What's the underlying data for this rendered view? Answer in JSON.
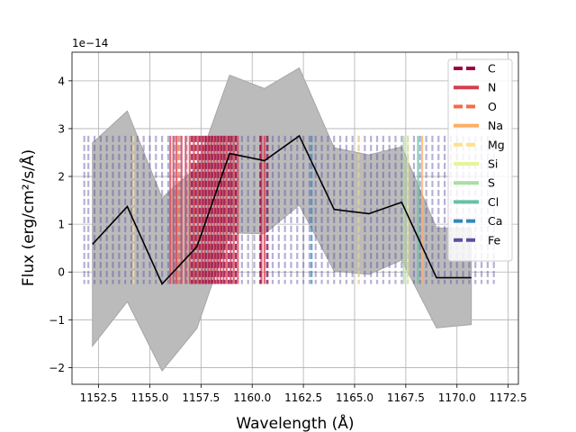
{
  "chart_data": {
    "type": "line",
    "xlabel": "Wavelength ($\\AA$)",
    "ylabel": "Flux (erg/cm$^2$/s/$\\AA$)",
    "xlabel_text": "Wavelength (Å)",
    "ylabel_text": "Flux (erg/cm²/s/Å)",
    "y_offset_text": "1e−14",
    "y_scale": 1e-14,
    "xlim": [
      1151.2,
      1173.0
    ],
    "ylim": [
      -2.35,
      4.6
    ],
    "xticks": [
      1152.5,
      1155.0,
      1157.5,
      1160.0,
      1162.5,
      1165.0,
      1167.5,
      1170.0,
      1172.5
    ],
    "xtick_labels": [
      "1152.5",
      "1155.0",
      "1157.5",
      "1160.0",
      "1162.5",
      "1165.0",
      "1167.5",
      "1170.0",
      "1172.5"
    ],
    "yticks": [
      -2,
      -1,
      0,
      1,
      2,
      3,
      4
    ],
    "ytick_labels": [
      "−2",
      "−1",
      "0",
      "1",
      "2",
      "3",
      "4"
    ],
    "grid": true,
    "legend_position": "upper right",
    "series": [
      {
        "type": "line",
        "color": "#000000",
        "x": [
          1152.2,
          1153.9,
          1155.6,
          1157.3,
          1158.9,
          1160.6,
          1162.3,
          1164.0,
          1165.7,
          1167.3,
          1169.0,
          1170.7
        ],
        "y": [
          0.58,
          1.37,
          -0.25,
          0.53,
          2.48,
          2.33,
          2.85,
          1.31,
          1.22,
          1.46,
          -0.12,
          -0.12
        ]
      }
    ],
    "band": {
      "color": "#bbbbbb",
      "x": [
        1152.2,
        1153.9,
        1155.6,
        1157.3,
        1158.9,
        1160.6,
        1162.3,
        1164.0,
        1165.7,
        1167.3,
        1169.0,
        1170.7
      ],
      "upper": [
        2.7,
        3.37,
        1.55,
        2.2,
        4.12,
        3.84,
        4.27,
        2.6,
        2.45,
        2.62,
        0.92,
        0.92
      ],
      "lower": [
        -1.55,
        -0.62,
        -2.07,
        -1.18,
        0.82,
        0.8,
        1.4,
        0.02,
        -0.05,
        0.25,
        -1.17,
        -1.1
      ]
    },
    "line_markers": {
      "ymin": -0.25,
      "ymax": 2.85,
      "elements": [
        {
          "name": "C",
          "color": "#9e0142",
          "dash": "dashed",
          "positions": [
            1157.05,
            1157.25,
            1157.45,
            1157.6,
            1157.75,
            1157.9,
            1158.05,
            1158.2,
            1158.35,
            1158.5,
            1158.65,
            1158.85,
            1159.0,
            1159.2,
            1160.4,
            1160.75
          ]
        },
        {
          "name": "N",
          "color": "#d53e4f",
          "dash": "solid",
          "positions": [
            1156.0,
            1156.15,
            1156.3,
            1156.55,
            1156.75,
            1156.95,
            1157.15,
            1157.35,
            1157.55,
            1157.7,
            1157.85,
            1158.0,
            1158.15,
            1158.3,
            1158.45,
            1158.6,
            1158.75,
            1158.95,
            1159.1,
            1159.3,
            1160.45,
            1160.6
          ]
        },
        {
          "name": "O",
          "color": "#f46d43",
          "dash": "dashed",
          "positions": [
            1156.4,
            1157.2
          ]
        },
        {
          "name": "Na",
          "color": "#fdae61",
          "dash": "solid",
          "positions": [
            1168.3
          ]
        },
        {
          "name": "Mg",
          "color": "#fee08b",
          "dash": "dashed",
          "positions": [
            1154.2,
            1165.2
          ]
        },
        {
          "name": "Si",
          "color": "#e6f598",
          "dash": "solid",
          "positions": [
            1167.6
          ]
        },
        {
          "name": "S",
          "color": "#abdda4",
          "dash": "solid",
          "positions": [
            1167.4
          ]
        },
        {
          "name": "Cl",
          "color": "#66c2a5",
          "dash": "solid",
          "positions": [
            1168.1
          ]
        },
        {
          "name": "Ca",
          "color": "#3288bd",
          "dash": "dashed",
          "positions": [
            1162.9
          ]
        },
        {
          "name": "Fe",
          "color": "#5e4fa2",
          "dash": "dashed",
          "positions": [
            1151.8,
            1152.0,
            1152.3,
            1152.6,
            1152.9,
            1153.2,
            1153.5,
            1153.8,
            1154.1,
            1154.4,
            1154.7,
            1155.0,
            1155.3,
            1155.6,
            1155.9,
            1156.2,
            1156.5,
            1156.8,
            1157.1,
            1157.4,
            1157.7,
            1158.0,
            1158.3,
            1158.6,
            1158.9,
            1159.2,
            1159.5,
            1159.8,
            1160.1,
            1160.4,
            1160.7,
            1161.0,
            1161.3,
            1161.6,
            1161.9,
            1162.2,
            1162.5,
            1162.8,
            1163.1,
            1163.4,
            1163.7,
            1164.0,
            1164.3,
            1164.6,
            1164.9,
            1165.2,
            1165.5,
            1165.8,
            1166.1,
            1166.4,
            1166.7,
            1167.0,
            1167.3,
            1167.6,
            1167.9,
            1168.2,
            1168.5,
            1168.8,
            1169.1,
            1169.4,
            1169.7,
            1170.0,
            1170.3,
            1170.6,
            1170.9,
            1171.2,
            1171.5,
            1171.8
          ]
        }
      ]
    }
  }
}
